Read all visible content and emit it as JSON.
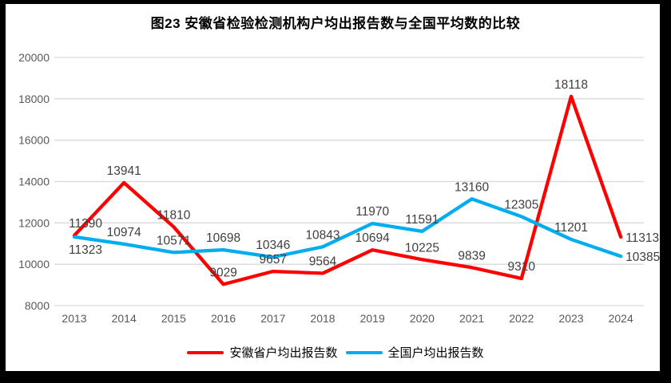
{
  "title": "图23 安徽省检验检测机构户均出报告数与全国平均数的比较",
  "legend": [
    {
      "label": "安徽省户均出报告数",
      "color": "#FF0000"
    },
    {
      "label": "全国户均出报告数",
      "color": "#00AEEF"
    }
  ],
  "chart_data": {
    "type": "line",
    "title": "图23 安徽省检验检测机构户均出报告数与全国平均数的比较",
    "categories": [
      "2013",
      "2014",
      "2015",
      "2016",
      "2017",
      "2018",
      "2019",
      "2020",
      "2021",
      "2022",
      "2023",
      "2024"
    ],
    "series": [
      {
        "name": "安徽省户均出报告数",
        "color": "#FF0000",
        "values": [
          11390,
          13941,
          11810,
          9029,
          9657,
          9564,
          10694,
          10225,
          9839,
          9310,
          18118,
          11313
        ],
        "label_positions": [
          "above",
          "above",
          "above",
          "above",
          "above",
          "above",
          "above",
          "above",
          "above",
          "above",
          "above",
          "right"
        ]
      },
      {
        "name": "全国户均出报告数",
        "color": "#00AEEF",
        "values": [
          11323,
          10974,
          10571,
          10698,
          10346,
          10843,
          11970,
          11591,
          13160,
          12305,
          11201,
          10385
        ],
        "label_positions": [
          "below",
          "above",
          "above",
          "above",
          "above",
          "above",
          "above",
          "above",
          "above",
          "above",
          "above",
          "right"
        ]
      }
    ],
    "xlabel": "",
    "ylabel": "",
    "ylim": [
      8000,
      20000
    ],
    "ytick_interval": 2000,
    "yticks": [
      8000,
      10000,
      12000,
      14000,
      16000,
      18000,
      20000
    ],
    "grid": true,
    "data_labels": true,
    "legend_position": "bottom",
    "colors": {
      "gridline": "#D9D9D9",
      "axis_text": "#595959",
      "data_label_text": "#3F3F3F"
    }
  }
}
